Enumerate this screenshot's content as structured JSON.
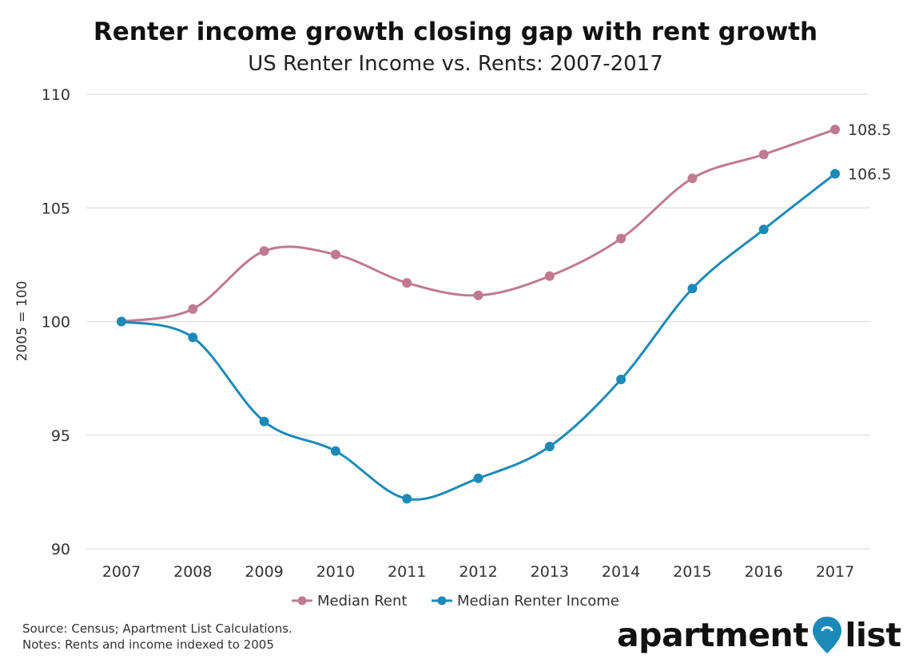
{
  "chart_data": {
    "type": "line",
    "title": "Renter income growth closing gap with rent growth",
    "subtitle": "US Renter Income vs. Rents: 2007-2017",
    "xlabel": "",
    "ylabel": "2005 = 100",
    "ylim": [
      90,
      110
    ],
    "yticks": [
      "90",
      "95",
      "100",
      "105",
      "110"
    ],
    "categories": [
      "2007",
      "2008",
      "2009",
      "2010",
      "2011",
      "2012",
      "2013",
      "2014",
      "2015",
      "2016",
      "2017"
    ],
    "grid": true,
    "legend_position": "bottom",
    "series": [
      {
        "name": "Median Rent",
        "color": "#c07a90",
        "values": [
          100.0,
          100.55,
          103.1,
          102.95,
          101.7,
          101.15,
          102.0,
          103.65,
          106.3,
          107.35,
          108.45
        ],
        "end_label": "108.5"
      },
      {
        "name": "Median Renter Income",
        "color": "#1c8ab8",
        "values": [
          100.0,
          99.3,
          95.6,
          94.3,
          92.2,
          93.1,
          94.5,
          97.45,
          101.45,
          104.05,
          106.5
        ],
        "end_label": "106.5"
      }
    ]
  },
  "footer": {
    "source": "Source: Census; Apartment List Calculations.",
    "notes": "Notes: Rents and income indexed to 2005"
  },
  "logo": {
    "text_left": "apartment",
    "text_right": "list",
    "color": "#1c8ab8"
  }
}
